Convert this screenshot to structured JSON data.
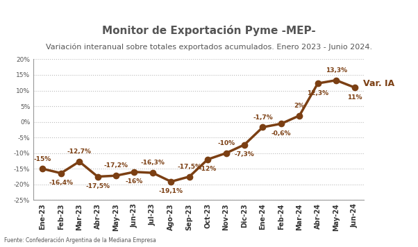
{
  "chart_data": {
    "type": "line",
    "title": "Monitor de Exportación Pyme -MEP-",
    "subtitle": "Variación interanual sobre totales exportados acumulados. Enero 2023 - Junio 2024.",
    "source": "Fuente: Confederación Argentina de la Mediana Empresa",
    "categories": [
      "Ene-23",
      "Feb-23",
      "Mar-23",
      "Abr-23",
      "May-23",
      "Jun-23",
      "Jul-23",
      "Ago-23",
      "Sep-23",
      "Oct-23",
      "Nov-23",
      "Dic-23",
      "Ene-24",
      "Feb-24",
      "Mar-24",
      "Abr-24",
      "May-24",
      "Jun-24"
    ],
    "series": [
      {
        "name": "Var. IA",
        "color": "#7b3f13",
        "marker": "o",
        "line_style": "solid",
        "values": [
          -15,
          -16.4,
          -12.7,
          -17.5,
          -17.2,
          -16,
          -16.3,
          -19.1,
          -17.5,
          -12,
          -10,
          -7.3,
          -1.7,
          -0.6,
          2,
          12.3,
          13.3,
          11
        ],
        "value_labels": [
          "-15%",
          "-16,4%",
          "-12,7%",
          "-17,5%",
          "-17,2%",
          "-16%",
          "-16,3%",
          "-19,1%",
          "-17,5%",
          "-12%",
          "-10%",
          "-7,3%",
          "-1,7%",
          "-0,6%",
          "2%",
          "12,3%",
          "13,3%",
          "11%"
        ]
      }
    ],
    "ylim": [
      -25,
      20
    ],
    "yticks": [
      {
        "value": -25,
        "label": "-25%"
      },
      {
        "value": -20,
        "label": "-20%"
      },
      {
        "value": -15,
        "label": "-15%"
      },
      {
        "value": -10,
        "label": "-10%"
      },
      {
        "value": -5,
        "label": "-5%"
      },
      {
        "value": 0,
        "label": "0%"
      },
      {
        "value": 5,
        "label": "5%"
      },
      {
        "value": 10,
        "label": "10%"
      },
      {
        "value": 15,
        "label": "15%"
      },
      {
        "value": 20,
        "label": "20%"
      }
    ],
    "grid": true,
    "data_labels": true
  }
}
